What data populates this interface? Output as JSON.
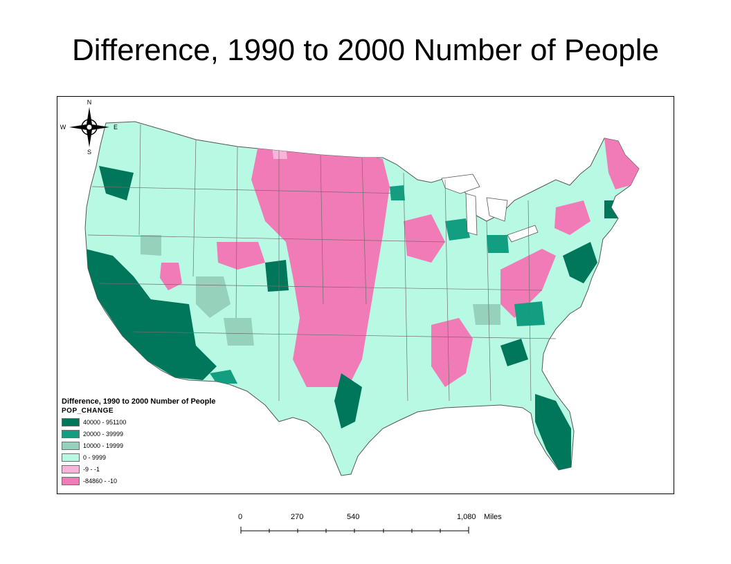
{
  "title": "Difference, 1990 to 2000 Number of People",
  "legend": {
    "title": "Difference, 1990 to 2000 Number of People",
    "field": "POP_CHANGE",
    "classes": [
      {
        "label": "40000 - 951100",
        "color": "#00775a"
      },
      {
        "label": "20000 - 39999",
        "color": "#129e80"
      },
      {
        "label": "10000 - 19999",
        "color": "#96d1bb"
      },
      {
        "label": "0 - 9999",
        "color": "#b7f9e3"
      },
      {
        "label": "-9 - -1",
        "color": "#f8b4d9"
      },
      {
        "label": "-84860 - -10",
        "color": "#f07bb6"
      }
    ]
  },
  "north_arrow": {
    "n": "N",
    "s": "S",
    "e": "E",
    "w": "W"
  },
  "scale_bar": {
    "ticks": [
      "0",
      "270",
      "540",
      "1,080"
    ],
    "unit": "Miles"
  }
}
